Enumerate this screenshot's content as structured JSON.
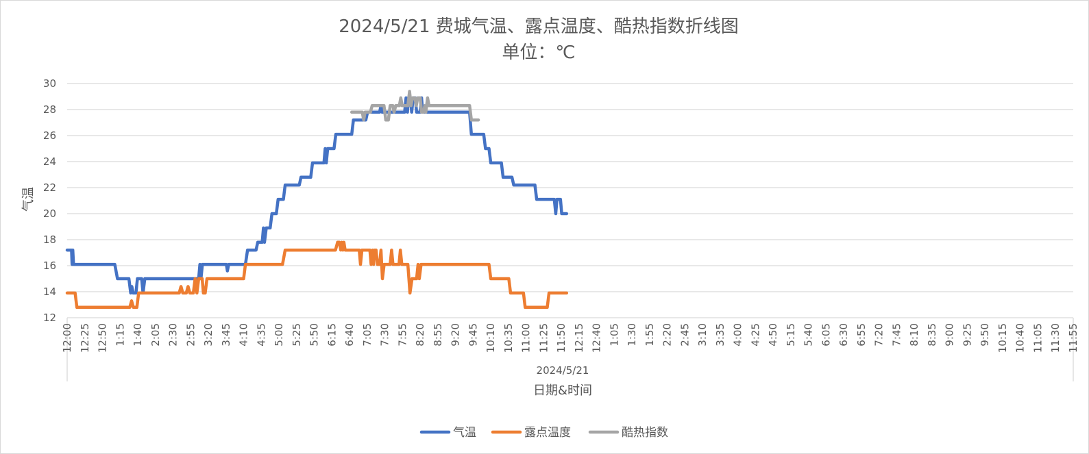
{
  "chart_data": {
    "type": "line",
    "title": "2024/5/21 费城气温、露点温度、酷热指数折线图",
    "subtitle": "单位：℃",
    "ylabel": "气温",
    "xlabel": "日期&时间",
    "x_group_label": "2024/5/21",
    "ylim": [
      12,
      30
    ],
    "yticks": [
      12,
      14,
      16,
      18,
      20,
      22,
      24,
      26,
      28,
      30
    ],
    "grid": true,
    "legend_position": "bottom",
    "x_tick_labels": [
      "12:00",
      "12:25",
      "12:50",
      "1:15",
      "1:40",
      "2:05",
      "2:30",
      "2:55",
      "3:20",
      "3:45",
      "4:10",
      "4:35",
      "5:00",
      "5:25",
      "5:50",
      "6:15",
      "6:40",
      "7:05",
      "7:30",
      "7:55",
      "8:20",
      "8:55",
      "9:20",
      "9:45",
      "10:10",
      "10:35",
      "11:00",
      "11:25",
      "11:50",
      "12:15",
      "12:40",
      "1:05",
      "1:30",
      "1:55",
      "2:20",
      "2:45",
      "3:10",
      "3:35",
      "4:00",
      "4:25",
      "4:50",
      "5:15",
      "5:40",
      "6:05",
      "6:30",
      "6:55",
      "7:20",
      "7:45",
      "8:10",
      "8:35",
      "9:00",
      "9:25",
      "9:50",
      "10:15",
      "10:40",
      "11:05",
      "11:30",
      "11:55"
    ],
    "series": [
      {
        "name": "气温",
        "color": "#4472c4",
        "points": [
          [
            0,
            17.2
          ],
          [
            0.25,
            17.2
          ],
          [
            0.28,
            16.1
          ],
          [
            0.32,
            17.2
          ],
          [
            0.36,
            16.1
          ],
          [
            2.7,
            16.1
          ],
          [
            2.85,
            15
          ],
          [
            3.5,
            15
          ],
          [
            3.6,
            13.9
          ],
          [
            3.66,
            14.4
          ],
          [
            3.74,
            13.9
          ],
          [
            3.9,
            13.9
          ],
          [
            3.98,
            15
          ],
          [
            4.22,
            15
          ],
          [
            4.3,
            13.9
          ],
          [
            4.4,
            15
          ],
          [
            7.45,
            15
          ],
          [
            7.52,
            16.1
          ],
          [
            7.58,
            15
          ],
          [
            7.66,
            16.1
          ],
          [
            9.02,
            16.1
          ],
          [
            9.08,
            15.6
          ],
          [
            9.15,
            16.1
          ],
          [
            10.1,
            16.1
          ],
          [
            10.22,
            17.2
          ],
          [
            10.7,
            17.2
          ],
          [
            10.8,
            17.8
          ],
          [
            11.05,
            17.8
          ],
          [
            11.12,
            18.9
          ],
          [
            11.18,
            17.8
          ],
          [
            11.28,
            18.9
          ],
          [
            11.5,
            18.9
          ],
          [
            11.6,
            20
          ],
          [
            11.85,
            20
          ],
          [
            11.95,
            21.1
          ],
          [
            12.25,
            21.1
          ],
          [
            12.35,
            22.2
          ],
          [
            13.15,
            22.2
          ],
          [
            13.25,
            22.8
          ],
          [
            13.8,
            22.8
          ],
          [
            13.9,
            23.9
          ],
          [
            14.55,
            23.9
          ],
          [
            14.62,
            25
          ],
          [
            14.68,
            23.9
          ],
          [
            14.76,
            25
          ],
          [
            15.12,
            25
          ],
          [
            15.22,
            26.1
          ],
          [
            16.12,
            26.1
          ],
          [
            16.22,
            27.2
          ],
          [
            16.92,
            27.2
          ],
          [
            17.02,
            27.8
          ],
          [
            17.7,
            27.8
          ],
          [
            17.78,
            28.3
          ],
          [
            17.85,
            27.8
          ],
          [
            19.12,
            27.8
          ],
          [
            19.2,
            28.9
          ],
          [
            19.28,
            27.8
          ],
          [
            19.34,
            28.9
          ],
          [
            19.45,
            28.9
          ],
          [
            19.52,
            27.8
          ],
          [
            19.6,
            28.9
          ],
          [
            19.72,
            28.9
          ],
          [
            19.8,
            27.8
          ],
          [
            20.0,
            27.8
          ],
          [
            20.08,
            28.9
          ],
          [
            20.14,
            27.8
          ],
          [
            21.5,
            27.8
          ],
          [
            22.8,
            27.8
          ],
          [
            22.9,
            26.1
          ],
          [
            23.6,
            26.1
          ],
          [
            23.7,
            25
          ],
          [
            23.9,
            25
          ],
          [
            24,
            23.9
          ],
          [
            24.6,
            23.9
          ],
          [
            24.7,
            22.8
          ],
          [
            25.2,
            22.8
          ],
          [
            25.3,
            22.2
          ],
          [
            26.5,
            22.2
          ],
          [
            26.6,
            21.1
          ],
          [
            27.6,
            21.1
          ],
          [
            27.68,
            20
          ],
          [
            27.75,
            21.1
          ],
          [
            27.95,
            21.1
          ],
          [
            28.02,
            20
          ],
          [
            28.3,
            20
          ]
        ]
      },
      {
        "name": "露点温度",
        "color": "#ed7d31",
        "points": [
          [
            0,
            13.9
          ],
          [
            0.45,
            13.9
          ],
          [
            0.55,
            12.8
          ],
          [
            3.55,
            12.8
          ],
          [
            3.65,
            13.3
          ],
          [
            3.75,
            12.8
          ],
          [
            3.95,
            12.8
          ],
          [
            4.05,
            13.9
          ],
          [
            6.35,
            13.9
          ],
          [
            6.45,
            14.4
          ],
          [
            6.55,
            13.9
          ],
          [
            6.75,
            13.9
          ],
          [
            6.85,
            14.4
          ],
          [
            6.95,
            13.9
          ],
          [
            7.15,
            13.9
          ],
          [
            7.25,
            15
          ],
          [
            7.35,
            13.9
          ],
          [
            7.45,
            15
          ],
          [
            7.65,
            15
          ],
          [
            7.72,
            13.9
          ],
          [
            7.82,
            13.9
          ],
          [
            7.92,
            15
          ],
          [
            10.0,
            15
          ],
          [
            10.1,
            16.1
          ],
          [
            12.2,
            16.1
          ],
          [
            12.35,
            17.2
          ],
          [
            15.2,
            17.2
          ],
          [
            15.32,
            17.8
          ],
          [
            15.42,
            17.8
          ],
          [
            15.5,
            17.2
          ],
          [
            15.56,
            17.8
          ],
          [
            15.62,
            17.2
          ],
          [
            15.68,
            17.8
          ],
          [
            15.75,
            17.2
          ],
          [
            16.55,
            17.2
          ],
          [
            16.62,
            16.1
          ],
          [
            16.7,
            17.2
          ],
          [
            17.15,
            17.2
          ],
          [
            17.22,
            16.1
          ],
          [
            17.3,
            17.2
          ],
          [
            17.36,
            16.1
          ],
          [
            17.42,
            17.2
          ],
          [
            17.5,
            17.2
          ],
          [
            17.58,
            16.1
          ],
          [
            17.7,
            16.1
          ],
          [
            17.78,
            17.2
          ],
          [
            17.86,
            15
          ],
          [
            17.96,
            16.1
          ],
          [
            18.3,
            16.1
          ],
          [
            18.38,
            17.2
          ],
          [
            18.46,
            16.1
          ],
          [
            18.8,
            16.1
          ],
          [
            18.88,
            17.2
          ],
          [
            18.96,
            16.1
          ],
          [
            19.3,
            16.1
          ],
          [
            19.42,
            13.9
          ],
          [
            19.54,
            15
          ],
          [
            19.8,
            15
          ],
          [
            19.88,
            16.1
          ],
          [
            19.95,
            15
          ],
          [
            20.05,
            16.1
          ],
          [
            23.9,
            16.1
          ],
          [
            24.0,
            15
          ],
          [
            25.02,
            15
          ],
          [
            25.12,
            13.9
          ],
          [
            25.85,
            13.9
          ],
          [
            25.95,
            12.8
          ],
          [
            27.2,
            12.8
          ],
          [
            27.3,
            13.9
          ],
          [
            28.3,
            13.9
          ]
        ]
      },
      {
        "name": "酷热指数",
        "color": "#a5a5a5",
        "points": [
          [
            16.12,
            27.8
          ],
          [
            16.72,
            27.8
          ],
          [
            16.8,
            27.2
          ],
          [
            16.88,
            27.8
          ],
          [
            17.18,
            27.8
          ],
          [
            17.28,
            28.3
          ],
          [
            17.95,
            28.3
          ],
          [
            18.05,
            27.2
          ],
          [
            18.2,
            27.2
          ],
          [
            18.3,
            28.3
          ],
          [
            18.45,
            28.3
          ],
          [
            18.52,
            27.8
          ],
          [
            18.62,
            28.3
          ],
          [
            18.82,
            28.3
          ],
          [
            18.9,
            28.9
          ],
          [
            18.98,
            28.3
          ],
          [
            19.3,
            28.3
          ],
          [
            19.4,
            29.4
          ],
          [
            19.48,
            28.3
          ],
          [
            19.56,
            28.9
          ],
          [
            19.7,
            28.9
          ],
          [
            19.78,
            28.3
          ],
          [
            19.86,
            28.9
          ],
          [
            20.0,
            28.9
          ],
          [
            20.08,
            27.8
          ],
          [
            20.2,
            27.8
          ],
          [
            20.26,
            28.3
          ],
          [
            20.32,
            27.8
          ],
          [
            20.42,
            28.9
          ],
          [
            20.5,
            28.3
          ],
          [
            22.3,
            28.3
          ],
          [
            22.8,
            28.3
          ],
          [
            22.9,
            27.2
          ],
          [
            23.3,
            27.2
          ]
        ]
      }
    ]
  }
}
